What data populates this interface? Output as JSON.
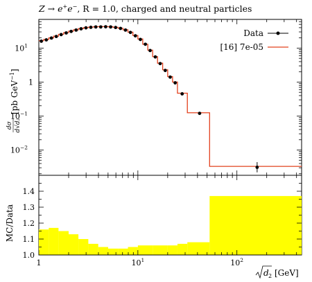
{
  "chart_data": [
    {
      "type": "line",
      "role": "main",
      "title": "Z → e⁺e⁻, R = 1.0, charged and neutral particles",
      "title_parts": {
        "process": "Z → e",
        "sup1": "+",
        "mid": "e",
        "sup2": "−",
        "rest": ", R = 1.0, charged and neutral particles"
      },
      "ylabel": "dσ/d√d₂ [pb GeV⁻¹]",
      "ylabel_parts": {
        "frac_num": "dσ",
        "frac_den": "d√d₂",
        "unit": "[pb GeV",
        "unit_sup": "−1",
        "unit_close": "]"
      },
      "yscale": "log",
      "ylim": [
        0.0018,
        70
      ],
      "xscale": "log",
      "xlim": [
        1,
        450
      ],
      "ytick_labels": [
        {
          "value": 10,
          "base": "10",
          "exp": "1"
        },
        {
          "value": 1,
          "base": "1",
          "exp": ""
        },
        {
          "value": 0.1,
          "base": "10",
          "exp": "−1"
        },
        {
          "value": 0.01,
          "base": "10",
          "exp": "−2"
        }
      ],
      "legend_position": "top-right",
      "series": [
        {
          "name": "Data",
          "style": "points-with-errors",
          "color": "#000000",
          "points": [
            {
              "x": 1.06,
              "y": 16.0,
              "err_lo": 1.5,
              "err_hi": 1.5
            },
            {
              "x": 1.19,
              "y": 17.5,
              "err_lo": 1.2,
              "err_hi": 1.2
            },
            {
              "x": 1.34,
              "y": 19.8,
              "err_lo": 1.2,
              "err_hi": 1.2
            },
            {
              "x": 1.5,
              "y": 22.0,
              "err_lo": 1.0,
              "err_hi": 1.0
            },
            {
              "x": 1.68,
              "y": 25.0,
              "err_lo": 1.0,
              "err_hi": 1.0
            },
            {
              "x": 1.89,
              "y": 28.0,
              "err_lo": 1.0,
              "err_hi": 1.0
            },
            {
              "x": 2.12,
              "y": 31.0,
              "err_lo": 1.0,
              "err_hi": 1.0
            },
            {
              "x": 2.38,
              "y": 34.0,
              "err_lo": 1.0,
              "err_hi": 1.0
            },
            {
              "x": 2.67,
              "y": 37.0,
              "err_lo": 1.0,
              "err_hi": 1.0
            },
            {
              "x": 2.99,
              "y": 39.5,
              "err_lo": 1.0,
              "err_hi": 1.0
            },
            {
              "x": 3.35,
              "y": 41.0,
              "err_lo": 1.0,
              "err_hi": 1.0
            },
            {
              "x": 3.76,
              "y": 42.0,
              "err_lo": 1.0,
              "err_hi": 1.0
            },
            {
              "x": 4.22,
              "y": 42.0,
              "err_lo": 1.0,
              "err_hi": 1.0
            },
            {
              "x": 4.73,
              "y": 42.5,
              "err_lo": 1.0,
              "err_hi": 1.0
            },
            {
              "x": 5.31,
              "y": 42.0,
              "err_lo": 1.0,
              "err_hi": 1.0
            },
            {
              "x": 5.96,
              "y": 40.5,
              "err_lo": 1.0,
              "err_hi": 1.0
            },
            {
              "x": 6.68,
              "y": 38.0,
              "err_lo": 1.0,
              "err_hi": 1.0
            },
            {
              "x": 7.5,
              "y": 34.0,
              "err_lo": 1.0,
              "err_hi": 1.0
            },
            {
              "x": 8.41,
              "y": 29.0,
              "err_lo": 1.0,
              "err_hi": 1.0
            },
            {
              "x": 9.44,
              "y": 23.0,
              "err_lo": 1.0,
              "err_hi": 1.0
            },
            {
              "x": 10.6,
              "y": 18.0,
              "err_lo": 0.8,
              "err_hi": 0.8
            },
            {
              "x": 11.9,
              "y": 13.0,
              "err_lo": 0.6,
              "err_hi": 0.6
            },
            {
              "x": 13.3,
              "y": 8.5,
              "err_lo": 0.4,
              "err_hi": 0.4
            },
            {
              "x": 15.0,
              "y": 5.5,
              "err_lo": 0.25,
              "err_hi": 0.25
            },
            {
              "x": 16.8,
              "y": 3.5,
              "err_lo": 0.15,
              "err_hi": 0.15
            },
            {
              "x": 18.9,
              "y": 2.2,
              "err_lo": 0.1,
              "err_hi": 0.1
            },
            {
              "x": 21.2,
              "y": 1.4,
              "err_lo": 0.07,
              "err_hi": 0.07
            },
            {
              "x": 23.8,
              "y": 0.95,
              "err_lo": 0.05,
              "err_hi": 0.05
            },
            {
              "x": 28.0,
              "y": 0.45,
              "err_lo": 0.03,
              "err_hi": 0.03
            },
            {
              "x": 42.0,
              "y": 0.12,
              "err_lo": 0.01,
              "err_hi": 0.01
            },
            {
              "x": 160.0,
              "y": 0.0031,
              "err_lo": 0.0009,
              "err_hi": 0.0013
            }
          ]
        },
        {
          "name": "[16] 7e-05",
          "style": "step",
          "color": "#e2401c",
          "bins": [
            {
              "x0": 1.0,
              "x1": 1.12,
              "y": 16.5
            },
            {
              "x0": 1.12,
              "x1": 1.26,
              "y": 18.0
            },
            {
              "x0": 1.26,
              "x1": 1.41,
              "y": 20.0
            },
            {
              "x0": 1.41,
              "x1": 1.58,
              "y": 22.5
            },
            {
              "x0": 1.58,
              "x1": 1.78,
              "y": 25.5
            },
            {
              "x0": 1.78,
              "x1": 2.0,
              "y": 28.5
            },
            {
              "x0": 2.0,
              "x1": 2.24,
              "y": 31.5
            },
            {
              "x0": 2.24,
              "x1": 2.51,
              "y": 34.5
            },
            {
              "x0": 2.51,
              "x1": 2.82,
              "y": 37.5
            },
            {
              "x0": 2.82,
              "x1": 3.16,
              "y": 40.0
            },
            {
              "x0": 3.16,
              "x1": 3.55,
              "y": 41.5
            },
            {
              "x0": 3.55,
              "x1": 3.98,
              "y": 42.5
            },
            {
              "x0": 3.98,
              "x1": 4.47,
              "y": 43.0
            },
            {
              "x0": 4.47,
              "x1": 5.01,
              "y": 43.0
            },
            {
              "x0": 5.01,
              "x1": 5.62,
              "y": 42.5
            },
            {
              "x0": 5.62,
              "x1": 6.31,
              "y": 41.0
            },
            {
              "x0": 6.31,
              "x1": 7.08,
              "y": 38.5
            },
            {
              "x0": 7.08,
              "x1": 7.94,
              "y": 34.5
            },
            {
              "x0": 7.94,
              "x1": 8.91,
              "y": 29.5
            },
            {
              "x0": 8.91,
              "x1": 10.0,
              "y": 23.5
            },
            {
              "x0": 10.0,
              "x1": 11.2,
              "y": 18.5
            },
            {
              "x0": 11.2,
              "x1": 12.6,
              "y": 13.0
            },
            {
              "x0": 12.6,
              "x1": 14.1,
              "y": 8.7
            },
            {
              "x0": 14.1,
              "x1": 15.8,
              "y": 5.6
            },
            {
              "x0": 15.8,
              "x1": 17.8,
              "y": 3.6
            },
            {
              "x0": 17.8,
              "x1": 20.0,
              "y": 2.3
            },
            {
              "x0": 20.0,
              "x1": 22.4,
              "y": 1.45
            },
            {
              "x0": 22.4,
              "x1": 25.1,
              "y": 1.0
            },
            {
              "x0": 25.1,
              "x1": 31.6,
              "y": 0.47
            },
            {
              "x0": 31.6,
              "x1": 53.0,
              "y": 0.125
            },
            {
              "x0": 53.0,
              "x1": 450.0,
              "y": 0.0033
            }
          ]
        }
      ]
    },
    {
      "type": "area",
      "role": "ratio",
      "ylabel": "MC/Data",
      "ylim": [
        1.0,
        1.5
      ],
      "yscale": "linear",
      "xscale": "log",
      "xlim": [
        1,
        450
      ],
      "xlabel": "√d₂ [GeV]",
      "xlabel_parts": {
        "root_arg": "d",
        "root_sub": "2",
        "unit": "[GeV]"
      },
      "ytick_labels": [
        "1.0",
        "1.1",
        "1.2",
        "1.3",
        "1.4"
      ],
      "xtick_labels": [
        {
          "value": 1,
          "base": "1",
          "exp": ""
        },
        {
          "value": 10,
          "base": "10",
          "exp": "1"
        },
        {
          "value": 100,
          "base": "10",
          "exp": "2"
        }
      ],
      "reference_line": 1.0,
      "band_color": "#ffff00",
      "bins": [
        {
          "x0": 1.0,
          "x1": 1.26,
          "y": 1.16
        },
        {
          "x0": 1.26,
          "x1": 1.58,
          "y": 1.17
        },
        {
          "x0": 1.58,
          "x1": 2.0,
          "y": 1.15
        },
        {
          "x0": 2.0,
          "x1": 2.51,
          "y": 1.13
        },
        {
          "x0": 2.51,
          "x1": 3.16,
          "y": 1.1
        },
        {
          "x0": 3.16,
          "x1": 3.98,
          "y": 1.07
        },
        {
          "x0": 3.98,
          "x1": 5.01,
          "y": 1.05
        },
        {
          "x0": 5.01,
          "x1": 6.31,
          "y": 1.04
        },
        {
          "x0": 6.31,
          "x1": 7.94,
          "y": 1.04
        },
        {
          "x0": 7.94,
          "x1": 10.0,
          "y": 1.05
        },
        {
          "x0": 10.0,
          "x1": 14.1,
          "y": 1.06
        },
        {
          "x0": 14.1,
          "x1": 20.0,
          "y": 1.06
        },
        {
          "x0": 20.0,
          "x1": 25.1,
          "y": 1.06
        },
        {
          "x0": 25.1,
          "x1": 31.6,
          "y": 1.07
        },
        {
          "x0": 31.6,
          "x1": 53.0,
          "y": 1.08
        },
        {
          "x0": 53.0,
          "x1": 450.0,
          "y": 1.37
        }
      ]
    }
  ]
}
